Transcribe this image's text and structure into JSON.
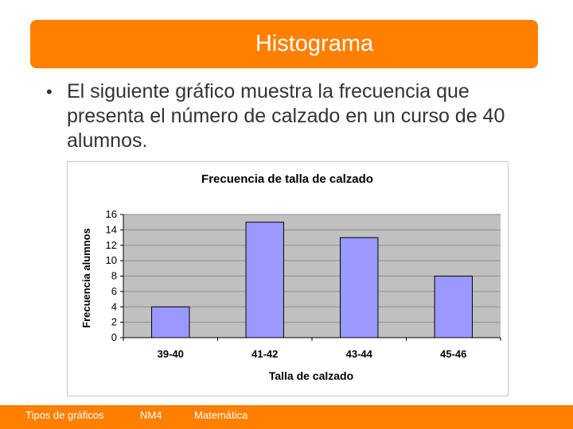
{
  "slide": {
    "title": "Histograma",
    "bullet": "El siguiente gráfico muestra la frecuencia que presenta el número de calzado en un curso de 40 alumnos."
  },
  "colors": {
    "accent": "#ff8000",
    "bar_fill": "#9999ff",
    "plot_background": "#c0c0c0"
  },
  "chart_data": {
    "type": "bar",
    "title": "Frecuencia de talla de calzado",
    "xlabel": "Talla de calzado",
    "ylabel": "Frecuencia alumnos",
    "categories": [
      "39-40",
      "41-42",
      "43-44",
      "45-46"
    ],
    "values": [
      4,
      15,
      13,
      8
    ],
    "ylim": [
      0,
      16
    ],
    "yticks": [
      0,
      2,
      4,
      6,
      8,
      10,
      12,
      14,
      16
    ],
    "grid": true,
    "legend": "none"
  },
  "footer": {
    "section": "Tipos de gráficos",
    "code": "NM4",
    "subject": "Matemática"
  }
}
